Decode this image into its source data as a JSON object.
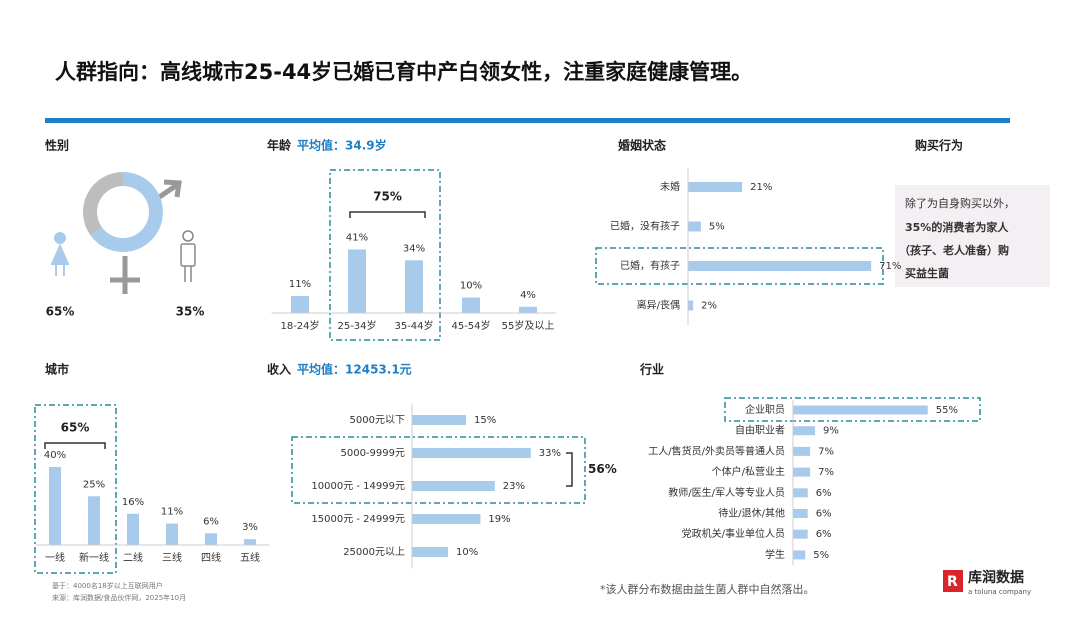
{
  "title": "人群指向：高线城市25-44岁已婚已育中产白领女性，注重家庭健康管理。",
  "chart_data": [
    {
      "type": "donut",
      "title": "性别",
      "values": [
        65,
        35
      ],
      "value_labels": [
        "65%",
        "35%"
      ],
      "colors": [
        "#a9cbeb",
        "#bdbdbd"
      ]
    },
    {
      "type": "bar",
      "title": "年龄",
      "subtitle": "平均值：34.9岁",
      "categories": [
        "18-24岁",
        "25-34岁",
        "35-44岁",
        "45-54岁",
        "55岁及以上"
      ],
      "values": [
        11,
        41,
        34,
        10,
        4
      ],
      "value_labels": [
        "11%",
        "41%",
        "34%",
        "10%",
        "4%"
      ],
      "annotation": "75%",
      "color": "#a9cbeb"
    },
    {
      "type": "hbar",
      "title": "婚姻状态",
      "categories": [
        "未婚",
        "已婚，没有孩子",
        "已婚，有孩子",
        "离异/丧偶"
      ],
      "values": [
        21,
        5,
        71,
        2
      ],
      "value_labels": [
        "21%",
        "5%",
        "71%",
        "2%"
      ],
      "color": "#a9cbeb"
    },
    {
      "type": "bar",
      "title": "城市",
      "categories": [
        "一线",
        "新一线",
        "二线",
        "三线",
        "四线",
        "五线"
      ],
      "values": [
        40,
        25,
        16,
        11,
        6,
        3
      ],
      "value_labels": [
        "40%",
        "25%",
        "16%",
        "11%",
        "6%",
        "3%"
      ],
      "annotation": "65%",
      "color": "#a9cbeb"
    },
    {
      "type": "hbar",
      "title": "收入",
      "subtitle": "平均值：12453.1元",
      "categories": [
        "5000元以下",
        "5000-9999元",
        "10000元 - 14999元",
        "15000元 - 24999元",
        "25000元以上"
      ],
      "values": [
        15,
        33,
        23,
        19,
        10
      ],
      "value_labels": [
        "15%",
        "33%",
        "23%",
        "19%",
        "10%"
      ],
      "annotation": "56%",
      "color": "#a9cbeb"
    },
    {
      "type": "hbar",
      "title": "行业",
      "categories": [
        "企业职员",
        "自由职业者",
        "工人/售货员/外卖员等普通人员",
        "个体户/私营业主",
        "教师/医生/军人等专业人员",
        "待业/退休/其他",
        "党政机关/事业单位人员",
        "学生"
      ],
      "values": [
        55,
        9,
        7,
        7,
        6,
        6,
        6,
        5
      ],
      "value_labels": [
        "55%",
        "9%",
        "7%",
        "7%",
        "6%",
        "6%",
        "6%",
        "5%"
      ],
      "color": "#a9cbeb"
    }
  ],
  "purchase": {
    "title": "购买行为",
    "lines": [
      "除了为自身购买以外，",
      "35%的消费者为家人",
      "（孩子、老人准备）购",
      "买益生菌"
    ]
  },
  "footnote": {
    "base": "基于：4000名18岁以上互联网用户",
    "source": "来源：库润数据/食品伙伴网，2025年10月",
    "note": "*该人群分布数据由益生菌人群中自然落出。"
  },
  "logo": {
    "name": "库润数据",
    "tagline": "a toluna company"
  }
}
